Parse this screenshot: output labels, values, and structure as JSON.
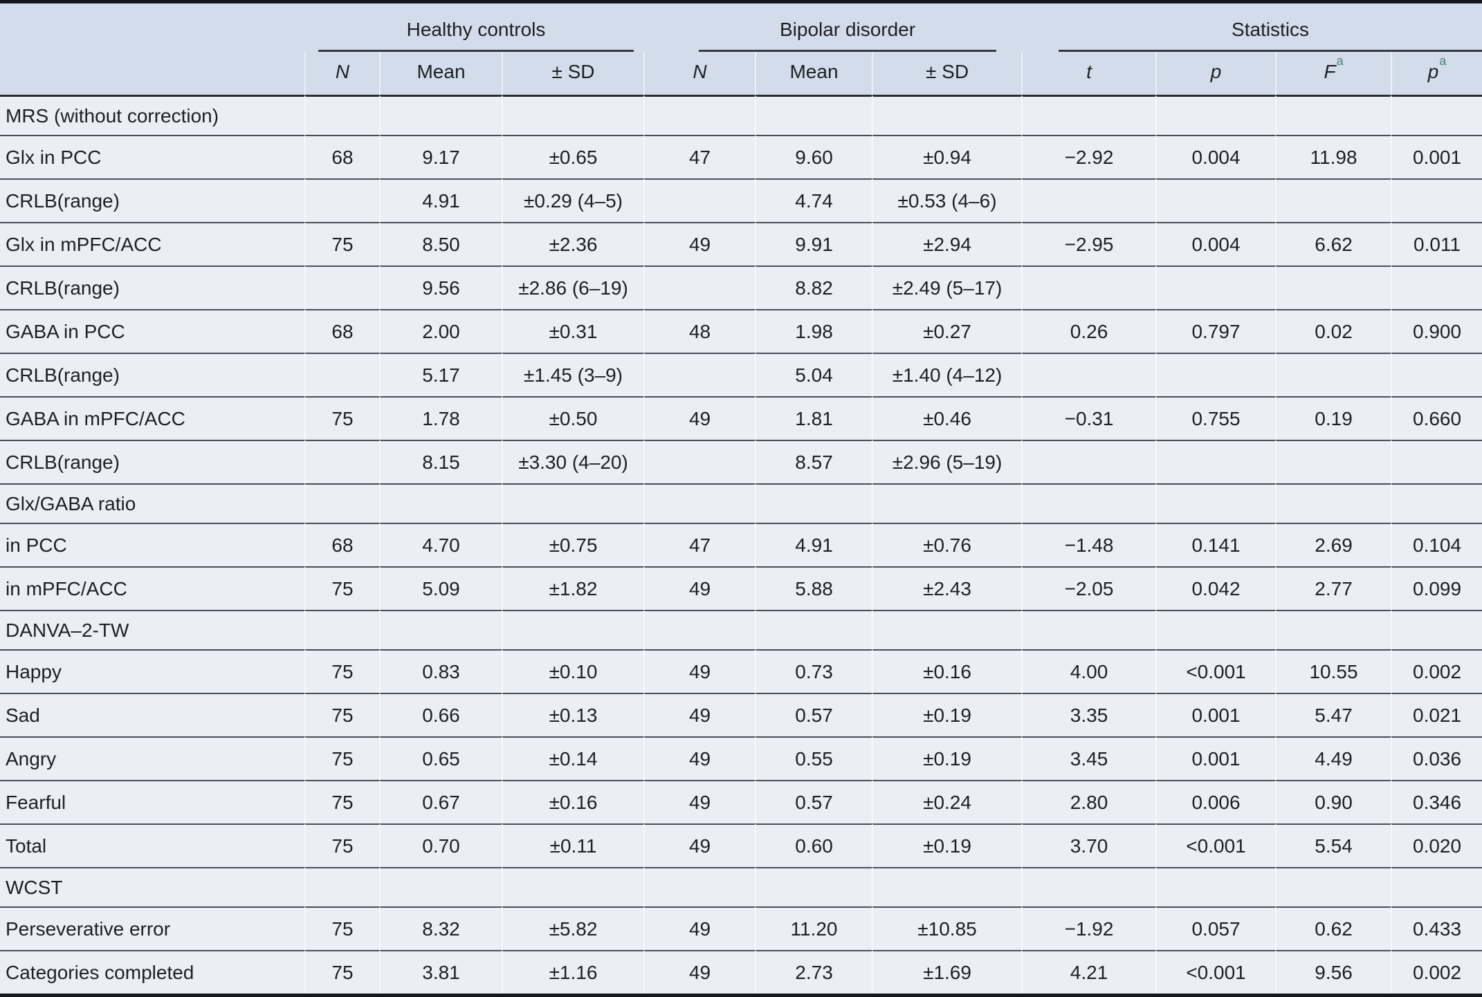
{
  "table": {
    "groups": [
      {
        "label": "Healthy controls"
      },
      {
        "label": "Bipolar disorder"
      },
      {
        "label": "Statistics"
      }
    ],
    "sub_headers": [
      {
        "label": "N",
        "italic": true
      },
      {
        "label": "Mean",
        "italic": false
      },
      {
        "label": "± SD",
        "italic": false
      },
      {
        "label": "N",
        "italic": true
      },
      {
        "label": "Mean",
        "italic": false
      },
      {
        "label": "± SD",
        "italic": false
      },
      {
        "label": "t",
        "italic": true
      },
      {
        "label": "p",
        "italic": true
      },
      {
        "label": "F",
        "italic": true,
        "sup": "a"
      },
      {
        "label": "p",
        "italic": true,
        "sup": "a"
      }
    ],
    "sections": [
      {
        "title": "MRS (without correction)",
        "rows": [
          {
            "label": "Glx in PCC",
            "cells": [
              "68",
              "9.17",
              "±0.65",
              "47",
              "9.60",
              "±0.94",
              "−2.92",
              "0.004",
              "11.98",
              "0.001"
            ]
          },
          {
            "label": "CRLB(range)",
            "cells": [
              "",
              "4.91",
              "±0.29 (4–5)",
              "",
              "4.74",
              "±0.53 (4–6)",
              "",
              "",
              "",
              ""
            ]
          },
          {
            "label": "Glx in mPFC/ACC",
            "cells": [
              "75",
              "8.50",
              "±2.36",
              "49",
              "9.91",
              "±2.94",
              "−2.95",
              "0.004",
              "6.62",
              "0.011"
            ]
          },
          {
            "label": "CRLB(range)",
            "cells": [
              "",
              "9.56",
              "±2.86 (6–19)",
              "",
              "8.82",
              "±2.49 (5–17)",
              "",
              "",
              "",
              ""
            ]
          },
          {
            "label": "GABA in PCC",
            "cells": [
              "68",
              "2.00",
              "±0.31",
              "48",
              "1.98",
              "±0.27",
              "0.26",
              "0.797",
              "0.02",
              "0.900"
            ]
          },
          {
            "label": "CRLB(range)",
            "cells": [
              "",
              "5.17",
              "±1.45 (3–9)",
              "",
              "5.04",
              "±1.40 (4–12)",
              "",
              "",
              "",
              ""
            ]
          },
          {
            "label": "GABA in mPFC/ACC",
            "cells": [
              "75",
              "1.78",
              "±0.50",
              "49",
              "1.81",
              "±0.46",
              "−0.31",
              "0.755",
              "0.19",
              "0.660"
            ]
          },
          {
            "label": "CRLB(range)",
            "cells": [
              "",
              "8.15",
              "±3.30 (4–20)",
              "",
              "8.57",
              "±2.96 (5–19)",
              "",
              "",
              "",
              ""
            ]
          }
        ]
      },
      {
        "title": "Glx/GABA ratio",
        "rows": [
          {
            "label": "in PCC",
            "cells": [
              "68",
              "4.70",
              "±0.75",
              "47",
              "4.91",
              "±0.76",
              "−1.48",
              "0.141",
              "2.69",
              "0.104"
            ]
          },
          {
            "label": "in mPFC/ACC",
            "cells": [
              "75",
              "5.09",
              "±1.82",
              "49",
              "5.88",
              "±2.43",
              "−2.05",
              "0.042",
              "2.77",
              "0.099"
            ]
          }
        ]
      },
      {
        "title": "DANVA–2-TW",
        "rows": [
          {
            "label": "Happy",
            "cells": [
              "75",
              "0.83",
              "±0.10",
              "49",
              "0.73",
              "±0.16",
              "4.00",
              "<0.001",
              "10.55",
              "0.002"
            ]
          },
          {
            "label": "Sad",
            "cells": [
              "75",
              "0.66",
              "±0.13",
              "49",
              "0.57",
              "±0.19",
              "3.35",
              "0.001",
              "5.47",
              "0.021"
            ]
          },
          {
            "label": "Angry",
            "cells": [
              "75",
              "0.65",
              "±0.14",
              "49",
              "0.55",
              "±0.19",
              "3.45",
              "0.001",
              "4.49",
              "0.036"
            ]
          },
          {
            "label": "Fearful",
            "cells": [
              "75",
              "0.67",
              "±0.16",
              "49",
              "0.57",
              "±0.24",
              "2.80",
              "0.006",
              "0.90",
              "0.346"
            ]
          },
          {
            "label": "Total",
            "cells": [
              "75",
              "0.70",
              "±0.11",
              "49",
              "0.60",
              "±0.19",
              "3.70",
              "<0.001",
              "5.54",
              "0.020"
            ]
          }
        ]
      },
      {
        "title": "WCST",
        "rows": [
          {
            "label": "Perseverative error",
            "cells": [
              "75",
              "8.32",
              "±5.82",
              "49",
              "11.20",
              "±10.85",
              "−1.92",
              "0.057",
              "0.62",
              "0.433"
            ]
          },
          {
            "label": "Categories completed",
            "cells": [
              "75",
              "3.81",
              "±1.16",
              "49",
              "2.73",
              "±1.69",
              "4.21",
              "<0.001",
              "9.56",
              "0.002"
            ]
          }
        ]
      }
    ]
  },
  "colors": {
    "header_bg": "#d3dcea",
    "body_bg": "#ebeef4",
    "row_rule": "#474d57",
    "heavy_rule": "#14171b",
    "group_underline": "#353b45",
    "superscript_accent": "#4a857a",
    "text": "#1c1f24"
  }
}
